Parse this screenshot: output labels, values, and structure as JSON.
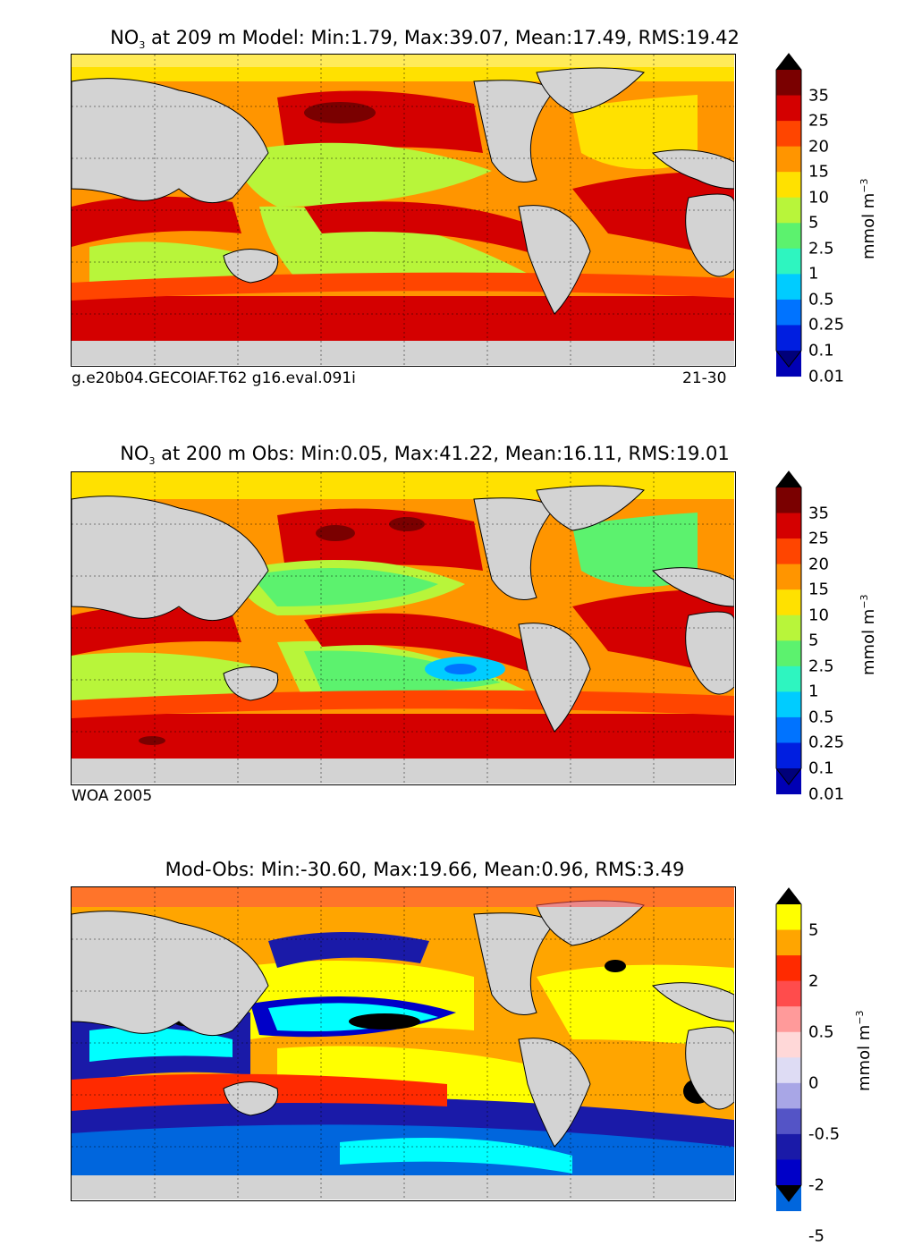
{
  "panels": [
    {
      "id": "model",
      "title_species": "NO",
      "title_species_sub": "3",
      "title_rest": " at 209 m Model: Min:1.79, Max:39.07, Mean:17.49, RMS:19.42",
      "caption_left": "g.e20b04.GECOIAF.T62 g16.eval.091i",
      "caption_right": "21-30",
      "colorbar": {
        "labels": [
          "35",
          "25",
          "20",
          "15",
          "10",
          "5",
          "2.5",
          "1",
          "0.5",
          "0.25",
          "0.1",
          "0.01"
        ],
        "colors": [
          "#7a0000",
          "#d40000",
          "#ff4500",
          "#ff9500",
          "#ffe100",
          "#b8f53a",
          "#5cf26e",
          "#2ef5c0",
          "#00ccff",
          "#0073ff",
          "#001ee0",
          "#0000b4",
          "#00007a"
        ],
        "unit_main": "mmol m",
        "unit_sup": "−3"
      }
    },
    {
      "id": "obs",
      "title_species": "NO",
      "title_species_sub": "3",
      "title_rest": " at 200 m Obs: Min:0.05, Max:41.22, Mean:16.11, RMS:19.01",
      "caption_left": "WOA 2005",
      "caption_right": "",
      "colorbar": {
        "labels": [
          "35",
          "25",
          "20",
          "15",
          "10",
          "5",
          "2.5",
          "1",
          "0.5",
          "0.25",
          "0.1",
          "0.01"
        ],
        "colors": [
          "#7a0000",
          "#d40000",
          "#ff4500",
          "#ff9500",
          "#ffe100",
          "#b8f53a",
          "#5cf26e",
          "#2ef5c0",
          "#00ccff",
          "#0073ff",
          "#001ee0",
          "#0000b4",
          "#00007a"
        ],
        "unit_main": "mmol m",
        "unit_sup": "−3"
      }
    },
    {
      "id": "diff",
      "title_species": "",
      "title_species_sub": "",
      "title_rest": "Mod-Obs: Min:-30.60, Max:19.66, Mean:0.96, RMS:3.49",
      "caption_left": "",
      "caption_right": "",
      "colorbar": {
        "labels": [
          "5",
          "2",
          "0.5",
          "0",
          "-0.5",
          "-2",
          "-5"
        ],
        "colors": [
          "#ffff00",
          "#ffa500",
          "#ff2a00",
          "#ff4c4c",
          "#ff9a9a",
          "#ffd8d8",
          "#dedcf4",
          "#a8a6e6",
          "#5454c6",
          "#1a1aa8",
          "#0000c8",
          "#0066dd",
          "#00ffff"
        ],
        "unit_main": "mmol m",
        "unit_sup": "−3"
      }
    }
  ],
  "colors": {
    "land": "#d3d3d3",
    "no_data": "#ffffff",
    "diff_extreme_low": "#000000"
  }
}
